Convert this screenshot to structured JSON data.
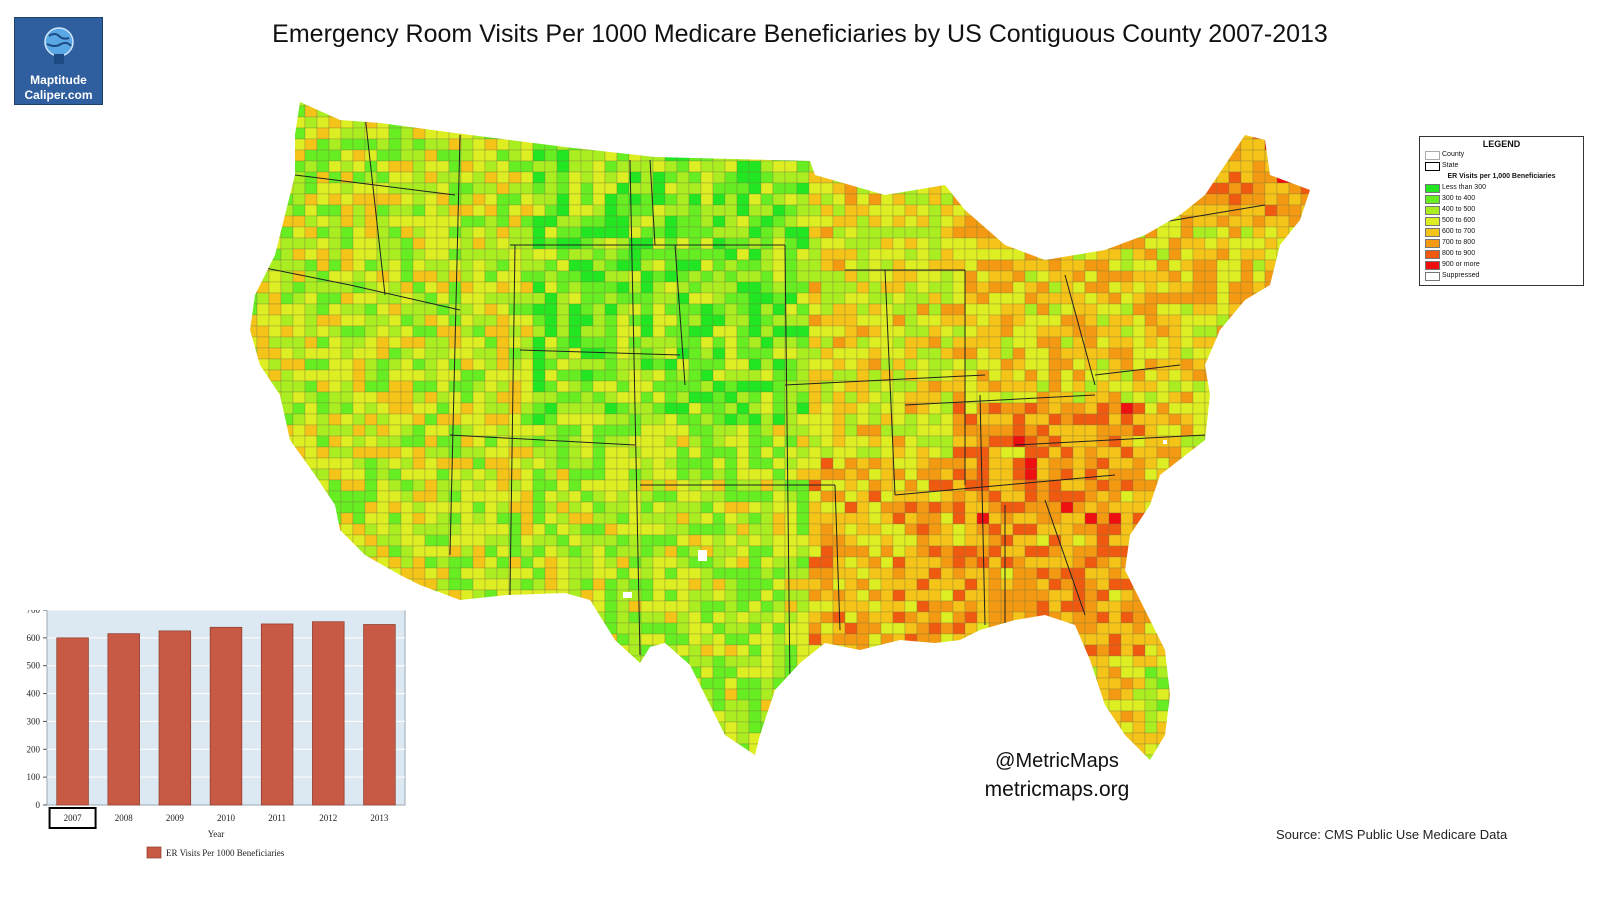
{
  "logo": {
    "line1": "Maptitude",
    "line2": "Caliper.com"
  },
  "title": "Emergency Room Visits Per 1000 Medicare Beneficiaries by US Contiguous County 2007-2013",
  "legend": {
    "title": "LEGEND",
    "boundaries": [
      {
        "label": "County"
      },
      {
        "label": "State"
      }
    ],
    "subtitle": "ER Visits per 1,000 Beneficiaries",
    "classes": [
      {
        "label": "Less than 300",
        "color": "#22e622"
      },
      {
        "label": "300 to 400",
        "color": "#66ee22"
      },
      {
        "label": "400 to 500",
        "color": "#aaee22"
      },
      {
        "label": "500 to 600",
        "color": "#ddee22"
      },
      {
        "label": "600 to 700",
        "color": "#f5c418"
      },
      {
        "label": "700 to 800",
        "color": "#f39a12"
      },
      {
        "label": "800 to 900",
        "color": "#ef5a10"
      },
      {
        "label": "900 or more",
        "color": "#ee1010"
      },
      {
        "label": "Suppressed",
        "color": "#ffffff"
      }
    ]
  },
  "attribution": {
    "handle": "@MetricMaps",
    "url": "metricmaps.org"
  },
  "source": "Source:  CMS Public Use Medicare Data",
  "chart_data": {
    "type": "bar",
    "categories": [
      "2007",
      "2008",
      "2009",
      "2010",
      "2011",
      "2012",
      "2013"
    ],
    "values": [
      600,
      615,
      625,
      638,
      650,
      658,
      648
    ],
    "xlabel": "Year",
    "ylabel": "",
    "ylim": [
      0,
      700
    ],
    "yticks": [
      0,
      100,
      200,
      300,
      400,
      500,
      600,
      700
    ],
    "selected_category": "2007",
    "series": [
      {
        "name": "ER Visits Per 1000 Beneficiaries",
        "values": [
          600,
          615,
          625,
          638,
          650,
          658,
          648
        ]
      }
    ],
    "bar_color": "#c85a45",
    "plot_background": "#dde9f2",
    "grid": true,
    "legend_position": "bottom"
  }
}
